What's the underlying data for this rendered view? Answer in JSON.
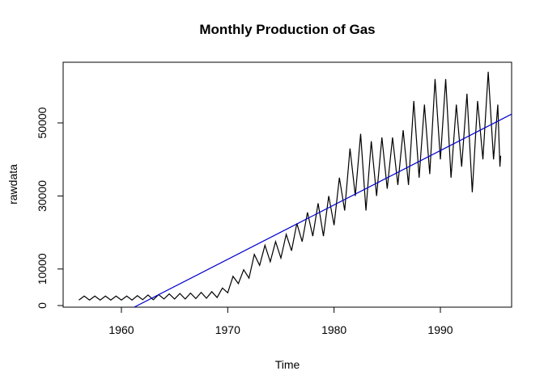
{
  "chart_data": {
    "type": "line",
    "title": "Monthly Production of Gas",
    "x_label": "Time",
    "y_label": "rawdata",
    "xlim": [
      1954.52,
      1996.7
    ],
    "ylim": [
      -440,
      66600
    ],
    "xticks": [
      1960,
      1970,
      1980,
      1990
    ],
    "yticks": [
      0,
      10000,
      30000,
      50000
    ],
    "series": [
      {
        "name": "rawdata",
        "color": "#000000",
        "x": [
          1956,
          1956.5,
          1957,
          1957.5,
          1958,
          1958.5,
          1959,
          1959.5,
          1960,
          1960.5,
          1961,
          1961.5,
          1962,
          1962.5,
          1963,
          1963.5,
          1964,
          1964.5,
          1965,
          1965.5,
          1966,
          1966.5,
          1967,
          1967.5,
          1968,
          1968.5,
          1969,
          1969.5,
          1970,
          1970.5,
          1971,
          1971.5,
          1972,
          1972.5,
          1973,
          1973.5,
          1974,
          1974.5,
          1975,
          1975.5,
          1976,
          1976.5,
          1977,
          1977.5,
          1978,
          1978.5,
          1979,
          1979.5,
          1980,
          1980.5,
          1981,
          1981.5,
          1982,
          1982.5,
          1983,
          1983.5,
          1984,
          1984.5,
          1985,
          1985.5,
          1986,
          1986.5,
          1987,
          1987.5,
          1988,
          1988.5,
          1989,
          1989.5,
          1990,
          1990.5,
          1991,
          1991.5,
          1992,
          1992.5,
          1993,
          1993.5,
          1994,
          1994.5,
          1995,
          1995.4,
          1995.6,
          1995.67
        ],
        "values": [
          1500,
          2600,
          1500,
          2600,
          1500,
          2600,
          1500,
          2600,
          1500,
          2600,
          1500,
          2700,
          1600,
          2900,
          1600,
          3000,
          1800,
          3200,
          1800,
          3300,
          1800,
          3400,
          1900,
          3600,
          2000,
          3800,
          2200,
          4800,
          3500,
          8000,
          6000,
          9800,
          7500,
          14000,
          11000,
          16500,
          12000,
          17500,
          13000,
          19500,
          15000,
          22500,
          17500,
          25500,
          19000,
          28000,
          19000,
          30000,
          22000,
          35000,
          26000,
          43000,
          30000,
          47000,
          26000,
          45000,
          30000,
          46000,
          32000,
          46000,
          33000,
          48000,
          33000,
          56000,
          35000,
          55000,
          36000,
          62000,
          40000,
          62000,
          35000,
          55000,
          38000,
          58000,
          31000,
          56000,
          40000,
          64000,
          40000,
          55000,
          38000,
          41000
        ]
      },
      {
        "color": "#0000cc",
        "x": [
          1961.2,
          1996.7
        ],
        "values": [
          -440,
          52400
        ]
      }
    ]
  }
}
